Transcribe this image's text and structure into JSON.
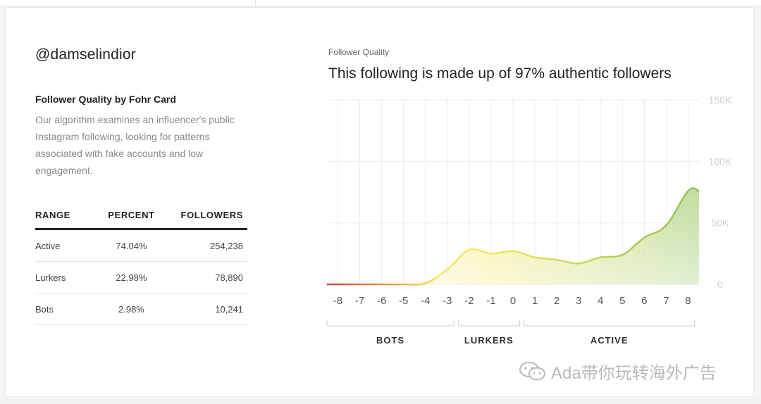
{
  "profile": {
    "handle": "@damselindior",
    "section_title": "Follower Quality by Fohr Card",
    "description": "Our algorithm examines an influencer's public Instagram following, looking for patterns associated with fake accounts and low engagement."
  },
  "table": {
    "headers": [
      "RANGE",
      "PERCENT",
      "FOLLOWERS"
    ],
    "rows": [
      {
        "range": "Active",
        "percent": "74.04%",
        "followers": "254,238"
      },
      {
        "range": "Lurkers",
        "percent": "22.98%",
        "followers": "78,890"
      },
      {
        "range": "Bots",
        "percent": "2.98%",
        "followers": "10,241"
      }
    ]
  },
  "chart_header": {
    "subtitle": "Follower Quality",
    "title": "This following is made up of 97% authentic followers"
  },
  "chart_data": {
    "type": "area",
    "title": "This following is made up of 97% authentic followers",
    "x": [
      -8,
      -7,
      -6,
      -5,
      -4,
      -3,
      -2,
      -1,
      0,
      1,
      2,
      3,
      4,
      5,
      6,
      7,
      8
    ],
    "x_tick_labels": [
      "-8",
      "-7",
      "-6",
      "-5",
      "-4",
      "-3",
      "-2",
      "-1",
      "0",
      "1",
      "2",
      "3",
      "4",
      "5",
      "6",
      "7",
      "8"
    ],
    "series": [
      {
        "values": [
          0,
          0,
          0,
          0,
          1000,
          12000,
          28000,
          25000,
          27000,
          22000,
          20000,
          17000,
          22000,
          24000,
          38000,
          48000,
          76000
        ]
      }
    ],
    "y_ticks": [
      0,
      50000,
      100000,
      150000
    ],
    "y_tick_labels": [
      "0",
      "50K",
      "100K",
      "150K"
    ],
    "xlim": [
      -8.5,
      8.5
    ],
    "ylim": [
      0,
      150000
    ],
    "yaxis_position": "right",
    "grid": true,
    "color_ramp": [
      "#c9463d",
      "#f3e85a",
      "#8cc152"
    ],
    "range_groups": [
      {
        "label": "BOTS",
        "from": -8,
        "to": -3
      },
      {
        "label": "LURKERS",
        "from": -2,
        "to": 0
      },
      {
        "label": "ACTIVE",
        "from": 1,
        "to": 8
      }
    ]
  },
  "watermark": {
    "icon": "wechat-icon",
    "text": "Ada带你玩转海外广告"
  }
}
